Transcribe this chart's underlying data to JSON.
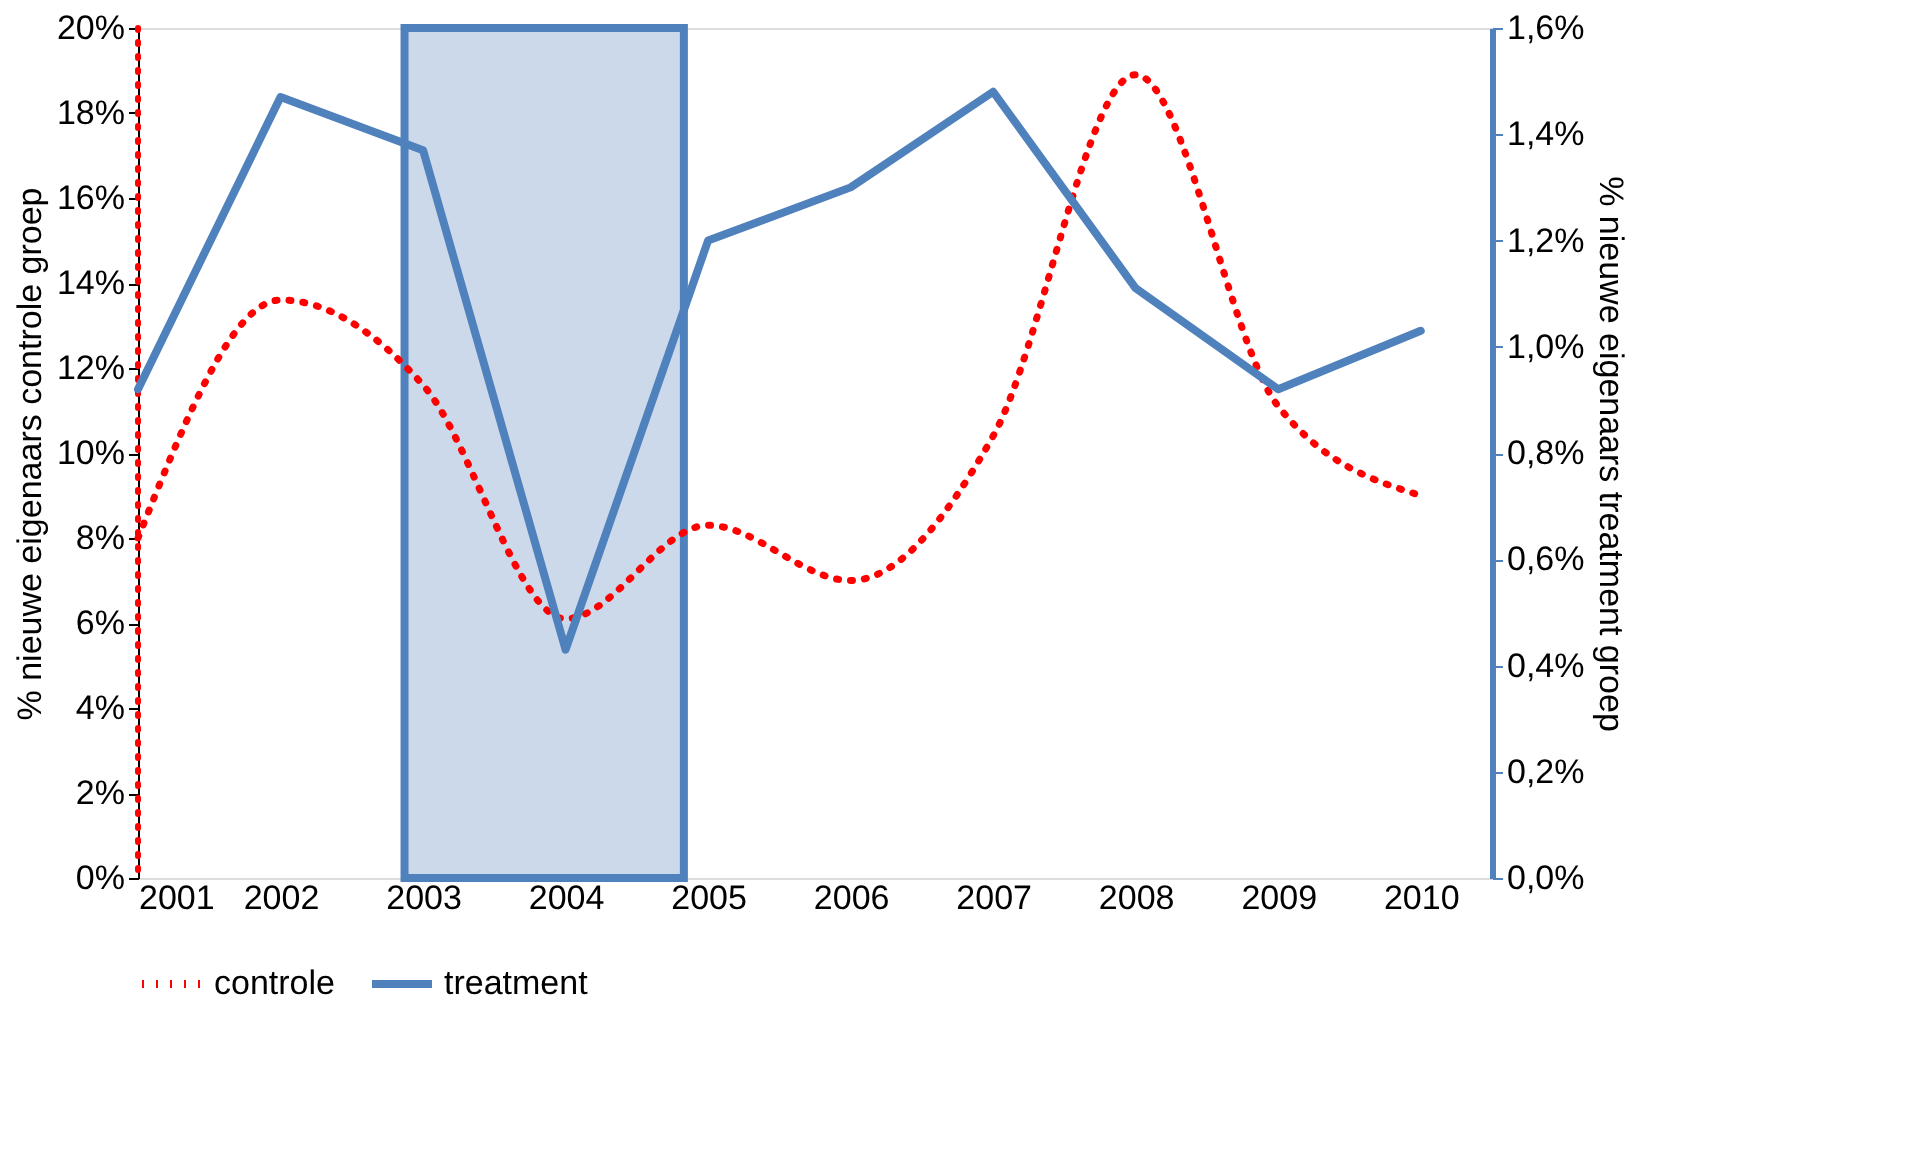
{
  "chart_data": {
    "type": "line",
    "ylabel": "% nieuwe eigenaars controle groep",
    "y2label": "% nieuwe eigenaars treatment groep",
    "x": [
      2001,
      2002,
      2003,
      2004,
      2005,
      2006,
      2007,
      2008,
      2009,
      2010
    ],
    "series": [
      {
        "name": "controle",
        "color": "#ff0000",
        "line_style": "dotted",
        "values": [
          8.0,
          13.6,
          11.6,
          6.1,
          8.3,
          7.0,
          10.4,
          18.9,
          11.1,
          9.0
        ]
      },
      {
        "name": "treatment",
        "color": "#4f81bd",
        "line_style": "solid",
        "axis": "y2",
        "values": [
          0.92,
          1.47,
          1.37,
          0.43,
          1.2,
          1.3,
          1.48,
          1.11,
          0.92,
          1.03
        ]
      }
    ],
    "xlim": [
      2001,
      2010.5
    ],
    "xticks": [
      2001,
      2002,
      2003,
      2004,
      2005,
      2006,
      2007,
      2008,
      2009,
      2010
    ],
    "ylim": [
      0,
      20
    ],
    "yticks": [
      {
        "value": 0,
        "label": "0%"
      },
      {
        "value": 2,
        "label": "2%"
      },
      {
        "value": 4,
        "label": "4%"
      },
      {
        "value": 6,
        "label": "6%"
      },
      {
        "value": 8,
        "label": "8%"
      },
      {
        "value": 10,
        "label": "10%"
      },
      {
        "value": 12,
        "label": "12%"
      },
      {
        "value": 14,
        "label": "14%"
      },
      {
        "value": 16,
        "label": "16%"
      },
      {
        "value": 18,
        "label": "18%"
      },
      {
        "value": 20,
        "label": "20%"
      }
    ],
    "y2lim": [
      0,
      1.6
    ],
    "y2ticks": [
      {
        "value": 0,
        "label": "0,0%"
      },
      {
        "value": 0.2,
        "label": "0,2%"
      },
      {
        "value": 0.4,
        "label": "0,4%"
      },
      {
        "value": 0.6,
        "label": "0,6%"
      },
      {
        "value": 0.8,
        "label": "0,8%"
      },
      {
        "value": 1.0,
        "label": "1,0%"
      },
      {
        "value": 1.2,
        "label": "1,2%"
      },
      {
        "value": 1.4,
        "label": "1,4%"
      },
      {
        "value": 1.6,
        "label": "1,6%"
      }
    ],
    "bands": [
      {
        "axis": "x",
        "from": 2002.87,
        "to": 2004.83,
        "color": "#cbd9ea"
      }
    ],
    "ref_lines": [
      {
        "axis": "x",
        "value": 2001,
        "color": "#ff0000",
        "line_style": "dotted"
      }
    ],
    "grid": false,
    "legend": "bottom"
  }
}
